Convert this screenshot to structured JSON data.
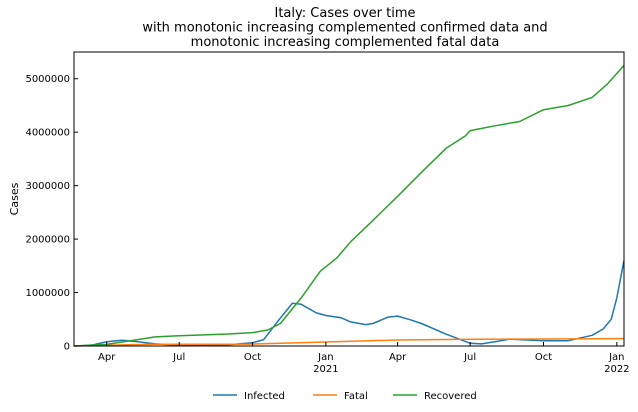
{
  "chart_data": {
    "type": "line",
    "title": [
      "Italy: Cases over time",
      "with monotonic increasing complemented confirmed data and",
      "monotonic increasing complemented fatal data"
    ],
    "xlabel": "",
    "ylabel": "Cases",
    "xlim": [
      "2020-02-20",
      "2022-01-10"
    ],
    "ylim": [
      0,
      5500000
    ],
    "yticks": [
      0,
      1000000,
      2000000,
      3000000,
      4000000,
      5000000
    ],
    "ytick_labels": [
      "0",
      "1000000",
      "2000000",
      "3000000",
      "4000000",
      "5000000"
    ],
    "xticks": [
      "2020-04-01",
      "2020-07-01",
      "2020-10-01",
      "2021-01-01",
      "2021-04-01",
      "2021-07-01",
      "2021-10-01",
      "2022-01-01"
    ],
    "xtick_labels": [
      [
        "Apr"
      ],
      [
        "Jul"
      ],
      [
        "Oct"
      ],
      [
        "Jan",
        "2021"
      ],
      [
        "Apr"
      ],
      [
        "Jul"
      ],
      [
        "Oct"
      ],
      [
        "Jan",
        "2022"
      ]
    ],
    "grid": false,
    "legend_position": "bottom-center",
    "series": [
      {
        "name": "Infected",
        "color": "#1f77b4",
        "points": [
          [
            "2020-02-20",
            0
          ],
          [
            "2020-03-01",
            5000
          ],
          [
            "2020-03-15",
            20000
          ],
          [
            "2020-04-01",
            80000
          ],
          [
            "2020-04-20",
            108000
          ],
          [
            "2020-05-10",
            80000
          ],
          [
            "2020-06-01",
            40000
          ],
          [
            "2020-07-01",
            15000
          ],
          [
            "2020-08-01",
            12000
          ],
          [
            "2020-09-01",
            25000
          ],
          [
            "2020-10-01",
            60000
          ],
          [
            "2020-10-15",
            120000
          ],
          [
            "2020-11-01",
            450000
          ],
          [
            "2020-11-20",
            800000
          ],
          [
            "2020-12-01",
            780000
          ],
          [
            "2020-12-20",
            620000
          ],
          [
            "2021-01-01",
            570000
          ],
          [
            "2021-01-20",
            530000
          ],
          [
            "2021-02-01",
            450000
          ],
          [
            "2021-02-20",
            400000
          ],
          [
            "2021-03-01",
            420000
          ],
          [
            "2021-03-20",
            540000
          ],
          [
            "2021-04-01",
            560000
          ],
          [
            "2021-04-15",
            500000
          ],
          [
            "2021-05-01",
            420000
          ],
          [
            "2021-06-01",
            220000
          ],
          [
            "2021-07-01",
            50000
          ],
          [
            "2021-07-15",
            40000
          ],
          [
            "2021-08-01",
            80000
          ],
          [
            "2021-08-20",
            130000
          ],
          [
            "2021-09-01",
            120000
          ],
          [
            "2021-10-01",
            100000
          ],
          [
            "2021-11-01",
            100000
          ],
          [
            "2021-12-01",
            200000
          ],
          [
            "2021-12-15",
            320000
          ],
          [
            "2021-12-25",
            500000
          ],
          [
            "2022-01-01",
            900000
          ],
          [
            "2022-01-10",
            1600000
          ]
        ]
      },
      {
        "name": "Fatal",
        "color": "#ff7f0e",
        "points": [
          [
            "2020-02-20",
            0
          ],
          [
            "2020-04-01",
            15000
          ],
          [
            "2020-06-01",
            33000
          ],
          [
            "2020-10-01",
            36000
          ],
          [
            "2021-01-01",
            75000
          ],
          [
            "2021-04-01",
            112000
          ],
          [
            "2021-07-01",
            127000
          ],
          [
            "2021-10-01",
            131000
          ],
          [
            "2022-01-01",
            138000
          ],
          [
            "2022-01-10",
            140000
          ]
        ]
      },
      {
        "name": "Recovered",
        "color": "#2ca02c",
        "points": [
          [
            "2020-02-20",
            0
          ],
          [
            "2020-04-01",
            30000
          ],
          [
            "2020-05-01",
            100000
          ],
          [
            "2020-06-01",
            170000
          ],
          [
            "2020-07-01",
            190000
          ],
          [
            "2020-09-01",
            225000
          ],
          [
            "2020-10-01",
            250000
          ],
          [
            "2020-10-20",
            300000
          ],
          [
            "2020-11-05",
            420000
          ],
          [
            "2020-12-01",
            900000
          ],
          [
            "2020-12-25",
            1400000
          ],
          [
            "2021-01-15",
            1650000
          ],
          [
            "2021-02-01",
            1950000
          ],
          [
            "2021-03-01",
            2350000
          ],
          [
            "2021-04-01",
            2800000
          ],
          [
            "2021-05-01",
            3250000
          ],
          [
            "2021-06-01",
            3700000
          ],
          [
            "2021-06-25",
            3930000
          ],
          [
            "2021-07-01",
            4030000
          ],
          [
            "2021-08-01",
            4120000
          ],
          [
            "2021-09-01",
            4200000
          ],
          [
            "2021-10-01",
            4420000
          ],
          [
            "2021-11-01",
            4500000
          ],
          [
            "2021-12-01",
            4650000
          ],
          [
            "2021-12-20",
            4900000
          ],
          [
            "2022-01-10",
            5250000
          ]
        ]
      }
    ]
  }
}
